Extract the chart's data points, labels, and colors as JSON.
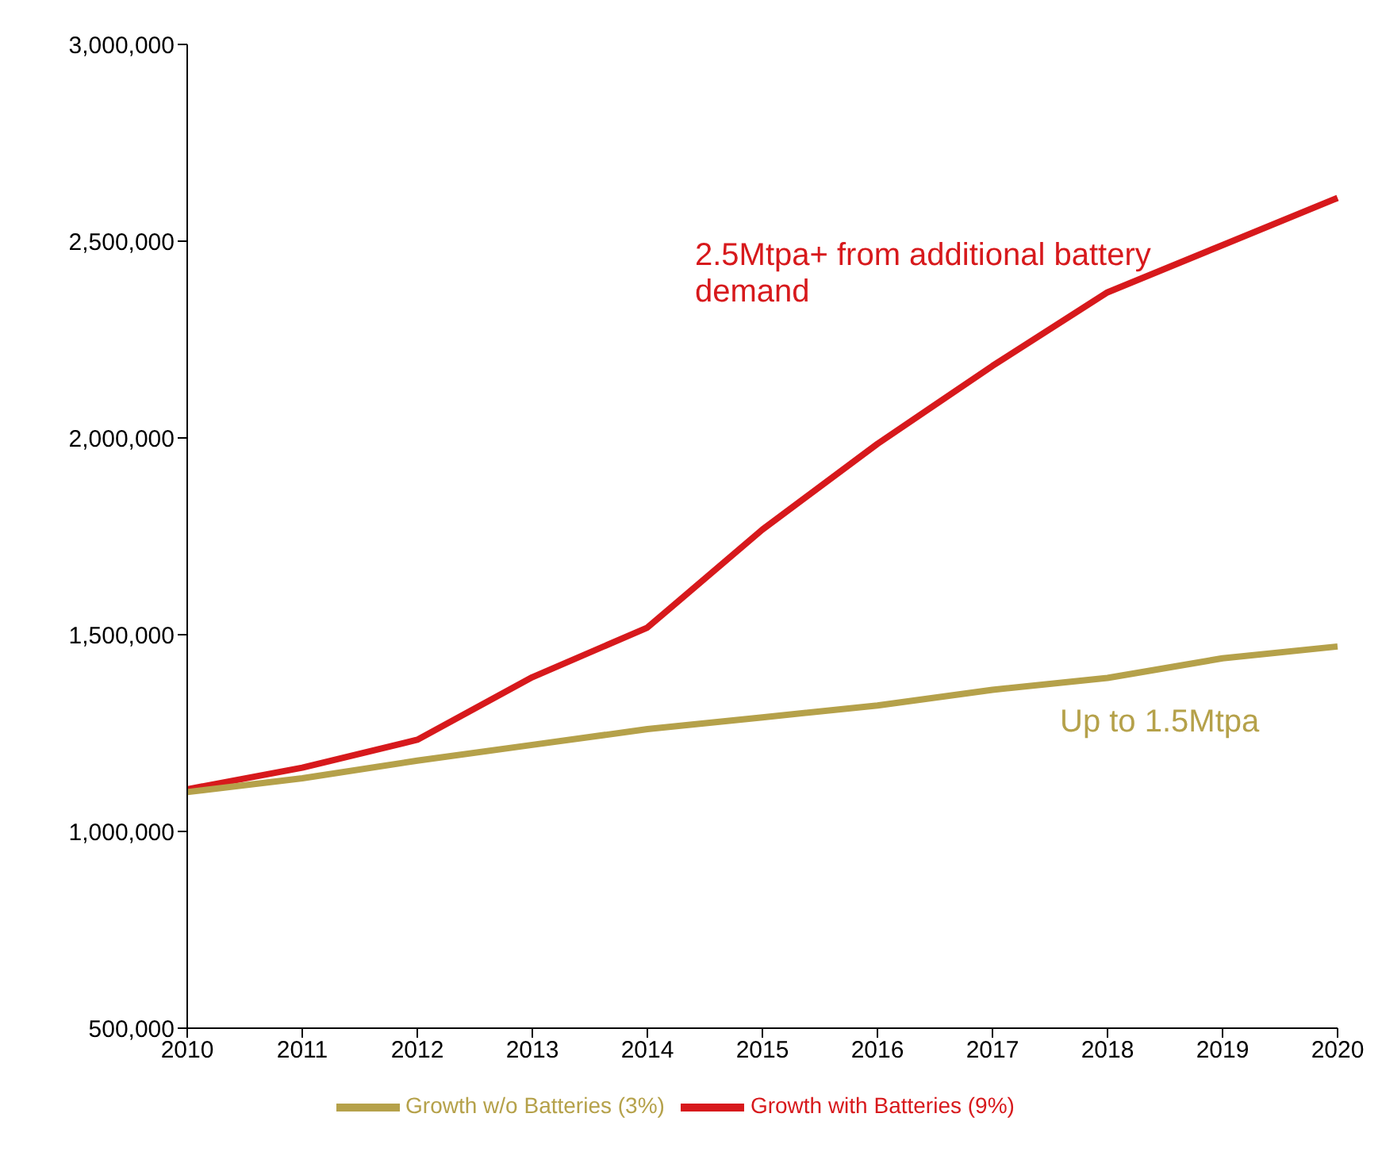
{
  "chart_data": {
    "type": "line",
    "categories": [
      "2010",
      "2011",
      "2012",
      "2013",
      "2014",
      "2015",
      "2016",
      "2017",
      "2018",
      "2019",
      "2020"
    ],
    "series": [
      {
        "name": "Growth with Batteries (9%)",
        "color": "#d7191c",
        "values": [
          1107000,
          1162000,
          1233000,
          1392000,
          1518000,
          1767000,
          1985000,
          2183000,
          2370000,
          2490000,
          2610000
        ]
      },
      {
        "name": "Growth w/o Batteries (3%)",
        "color": "#b5a14a",
        "values": [
          1100000,
          1135000,
          1180000,
          1220000,
          1260000,
          1290000,
          1320000,
          1360000,
          1390000,
          1440000,
          1470000
        ]
      }
    ],
    "ylim": [
      500000,
      3000000
    ],
    "yticks": [
      {
        "value": 500000,
        "label": "500,000"
      },
      {
        "value": 1000000,
        "label": "1,000,000"
      },
      {
        "value": 1500000,
        "label": "1,500,000"
      },
      {
        "value": 2000000,
        "label": "2,000,000"
      },
      {
        "value": 2500000,
        "label": "2,500,000"
      },
      {
        "value": 3000000,
        "label": "3,000,000"
      }
    ],
    "grid": false,
    "legend": "bottom",
    "marker": "none",
    "line_style": "solid",
    "annotations": [
      "2.5Mtpa+ from additional battery demand",
      "Up to 1.5Mtpa"
    ]
  }
}
